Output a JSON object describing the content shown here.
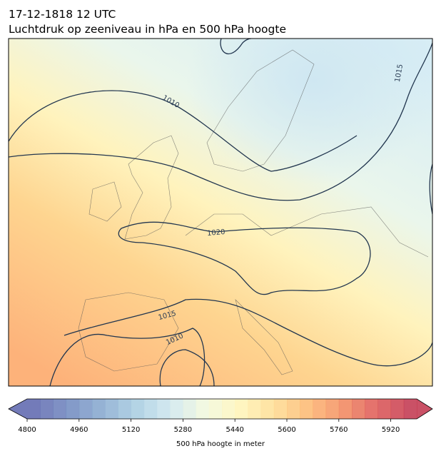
{
  "title": [
    "17-12-1818 12 UTC",
    "Luchtdruk op zeeniveau in hPa en 500 hPa hoogte"
  ],
  "contour_labels": [
    "1010",
    "1015",
    "1020",
    "1015",
    "1010"
  ],
  "colorbar": {
    "label": "500 hPa hoogte in meter",
    "range": [
      4800,
      6000
    ],
    "ticks": [
      4800,
      4960,
      5120,
      5280,
      5440,
      5600,
      5760,
      5920
    ]
  }
}
